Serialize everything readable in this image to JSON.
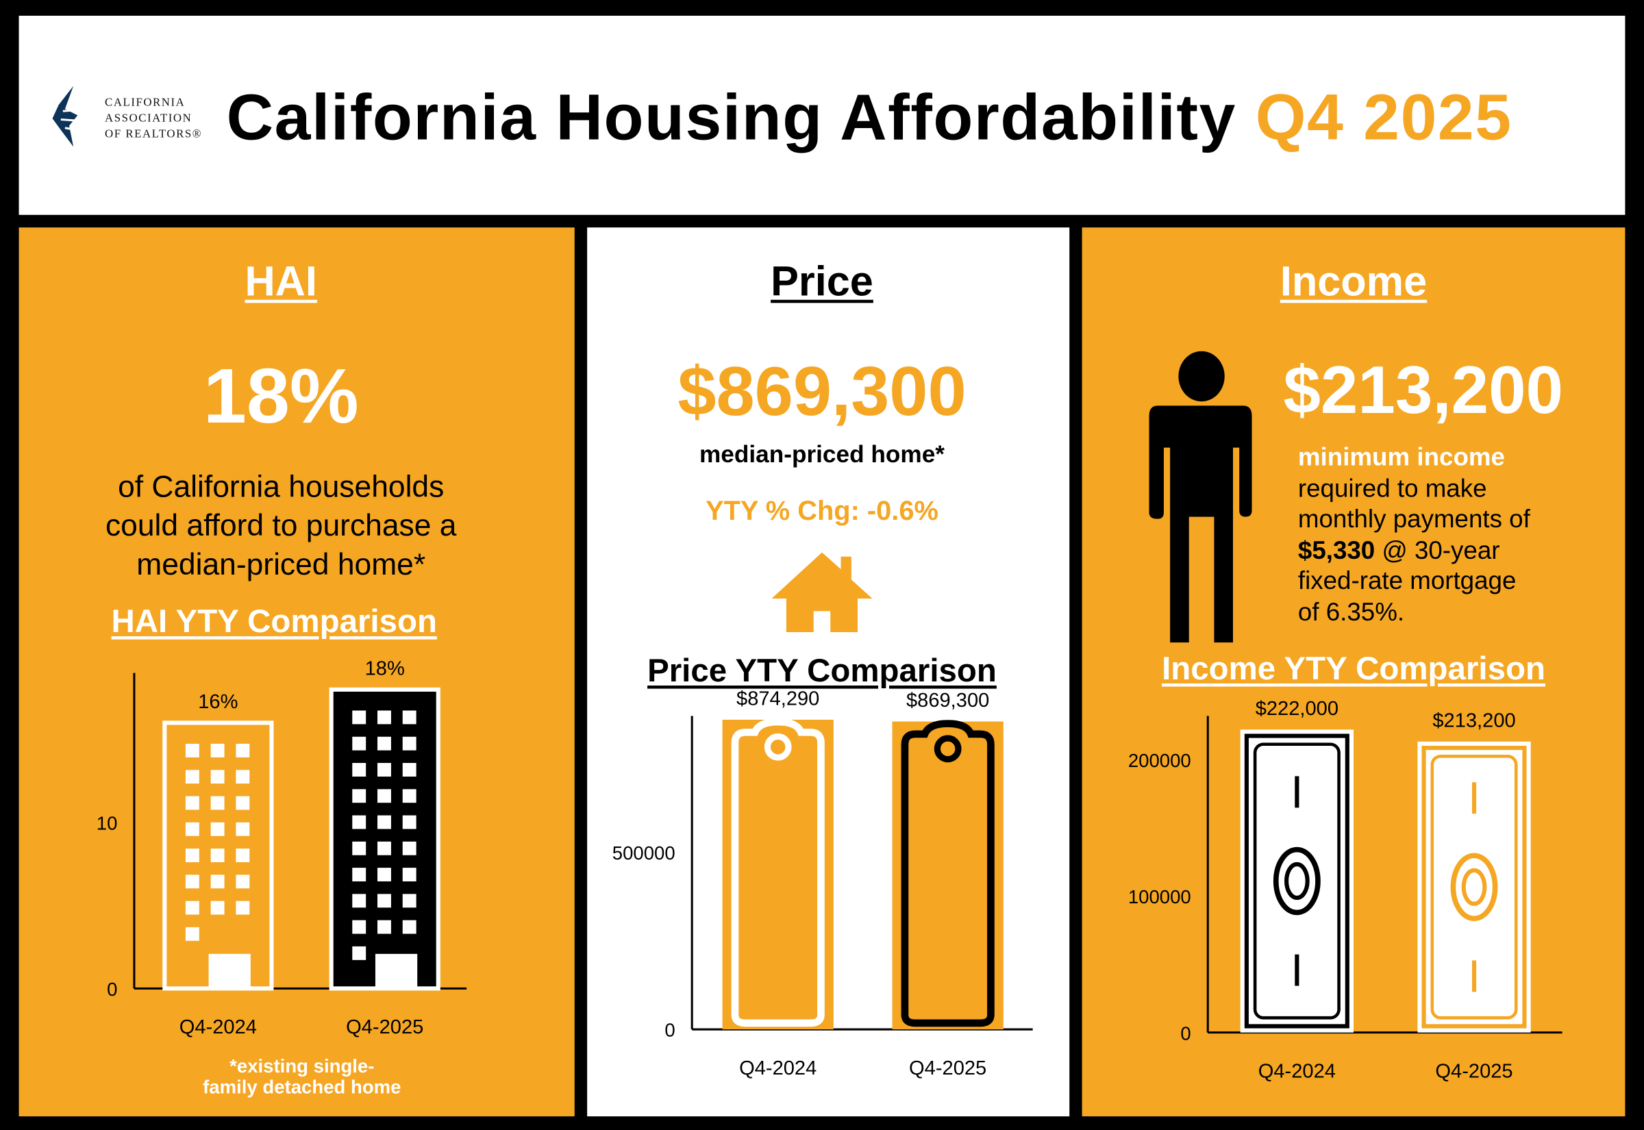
{
  "header": {
    "logo_text": [
      "CALIFORNIA",
      "ASSOCIATION",
      "OF REALTORS®"
    ],
    "title": "California Housing Affordability",
    "period": "Q4 2025"
  },
  "colors": {
    "accent": "#F5A623",
    "dark": "#000000",
    "logo_blue": "#0D3358"
  },
  "hai": {
    "heading": "HAI",
    "value": "18%",
    "description": [
      "of California households",
      "could afford to purchase a",
      "median-priced home*"
    ],
    "comparison_title": "HAI YTY Comparison",
    "footnote": [
      "*existing single-",
      "family detached home"
    ],
    "icon": "office-building-icon"
  },
  "price": {
    "heading": "Price",
    "value": "$869,300",
    "subtitle": "median-priced home*",
    "yty_change": "YTY % Chg: -0.6%",
    "icon": "house-icon",
    "comparison_title": "Price YTY Comparison"
  },
  "income": {
    "heading": "Income",
    "value": "$213,200",
    "lead": "minimum income",
    "lines": [
      "required to make",
      "monthly payments of"
    ],
    "payment": "$5,330",
    "payment_rest": " @ 30-year",
    "lines2": [
      "fixed-rate mortgage",
      "of 6.35%."
    ],
    "icon": "person-icon",
    "comparison_title": "Income YTY Comparison"
  },
  "chart_data": [
    {
      "type": "bar",
      "id": "hai",
      "categories": [
        "Q4-2024",
        "Q4-2025"
      ],
      "values": [
        16,
        18
      ],
      "data_labels": [
        "16%",
        "18%"
      ],
      "yticks": [
        0,
        10
      ],
      "ylim": [
        0,
        19
      ],
      "bar_icon": "building"
    },
    {
      "type": "bar",
      "id": "price",
      "categories": [
        "Q4-2024",
        "Q4-2025"
      ],
      "values": [
        874290,
        869300
      ],
      "data_labels": [
        "$874,290",
        "$869,300"
      ],
      "yticks": [
        0,
        500000
      ],
      "ylim": [
        0,
        885000
      ],
      "bar_icon": "price-tag"
    },
    {
      "type": "bar",
      "id": "income",
      "categories": [
        "Q4-2024",
        "Q4-2025"
      ],
      "values": [
        222000,
        213200
      ],
      "data_labels": [
        "$222,000",
        "$213,200"
      ],
      "yticks": [
        0,
        100000,
        200000
      ],
      "ylim": [
        0,
        232000
      ],
      "bar_icon": "banknote"
    }
  ]
}
